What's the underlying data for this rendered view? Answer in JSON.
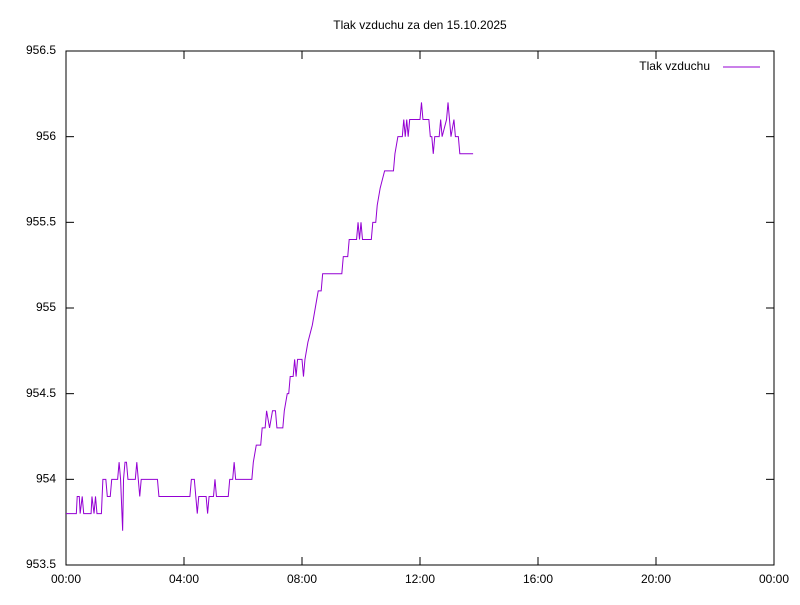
{
  "chart_data": {
    "type": "line",
    "title": "Tlak vzduchu za den 15.10.2025",
    "x": [
      0.0,
      0.35,
      0.38,
      0.45,
      0.48,
      0.55,
      0.6,
      0.85,
      0.88,
      0.95,
      1.0,
      1.05,
      1.2,
      1.25,
      1.35,
      1.4,
      1.5,
      1.55,
      1.75,
      1.8,
      1.85,
      1.92,
      1.95,
      2.0,
      2.05,
      2.1,
      2.35,
      2.4,
      2.45,
      2.5,
      2.55,
      3.1,
      3.15,
      4.2,
      4.25,
      4.35,
      4.4,
      4.45,
      4.5,
      4.75,
      4.8,
      4.85,
      5.0,
      5.05,
      5.1,
      5.5,
      5.55,
      5.65,
      5.7,
      5.75,
      6.3,
      6.35,
      6.45,
      6.6,
      6.65,
      6.75,
      6.8,
      6.9,
      7.0,
      7.1,
      7.15,
      7.35,
      7.4,
      7.5,
      7.55,
      7.6,
      7.7,
      7.75,
      7.8,
      7.85,
      8.0,
      8.05,
      8.1,
      8.2,
      8.35,
      8.45,
      8.55,
      8.65,
      8.7,
      9.35,
      9.4,
      9.55,
      9.6,
      9.85,
      9.9,
      9.95,
      10.0,
      10.05,
      10.35,
      10.4,
      10.5,
      10.55,
      10.65,
      10.8,
      11.1,
      11.15,
      11.25,
      11.4,
      11.45,
      11.5,
      11.55,
      11.6,
      11.65,
      12.0,
      12.05,
      12.1,
      12.3,
      12.35,
      12.4,
      12.45,
      12.5,
      12.65,
      12.7,
      12.75,
      12.9,
      12.95,
      13.0,
      13.05,
      13.15,
      13.2,
      13.3,
      13.35,
      13.8
    ],
    "series": [
      {
        "name": "Tlak vzduchu",
        "color": "#9400d3",
        "values": [
          953.8,
          953.8,
          953.9,
          953.9,
          953.8,
          953.9,
          953.8,
          953.8,
          953.9,
          953.8,
          953.9,
          953.8,
          953.8,
          954.0,
          954.0,
          953.9,
          953.9,
          954.0,
          954.0,
          954.1,
          954.0,
          953.7,
          954.0,
          954.1,
          954.1,
          954.0,
          954.0,
          954.1,
          954.0,
          953.9,
          954.0,
          954.0,
          953.9,
          953.9,
          954.0,
          954.0,
          953.9,
          953.8,
          953.9,
          953.9,
          953.8,
          953.9,
          953.9,
          954.0,
          953.9,
          953.9,
          954.0,
          954.0,
          954.1,
          954.0,
          954.0,
          954.1,
          954.2,
          954.2,
          954.3,
          954.3,
          954.4,
          954.3,
          954.4,
          954.4,
          954.3,
          954.3,
          954.4,
          954.5,
          954.5,
          954.6,
          954.6,
          954.7,
          954.6,
          954.7,
          954.7,
          954.6,
          954.7,
          954.8,
          954.9,
          955.0,
          955.1,
          955.1,
          955.2,
          955.2,
          955.3,
          955.3,
          955.4,
          955.4,
          955.5,
          955.4,
          955.5,
          955.4,
          955.4,
          955.5,
          955.5,
          955.6,
          955.7,
          955.8,
          955.8,
          955.9,
          956.0,
          956.0,
          956.1,
          956.0,
          956.1,
          956.0,
          956.1,
          956.1,
          956.2,
          956.1,
          956.1,
          956.0,
          956.0,
          955.9,
          956.0,
          956.0,
          956.1,
          956.0,
          956.1,
          956.2,
          956.1,
          956.0,
          956.1,
          956.0,
          956.0,
          955.9,
          955.9
        ]
      }
    ],
    "xlim": [
      0,
      24
    ],
    "xticks": [
      {
        "value": 0,
        "label": "00:00"
      },
      {
        "value": 4,
        "label": "04:00"
      },
      {
        "value": 8,
        "label": "08:00"
      },
      {
        "value": 12,
        "label": "12:00"
      },
      {
        "value": 16,
        "label": "16:00"
      },
      {
        "value": 20,
        "label": "20:00"
      },
      {
        "value": 24,
        "label": "00:00"
      }
    ],
    "ylim": [
      953.5,
      956.5
    ],
    "yticks": [
      953.5,
      954,
      954.5,
      955,
      955.5,
      956,
      956.5
    ],
    "grid": false,
    "legend": "top-right"
  }
}
